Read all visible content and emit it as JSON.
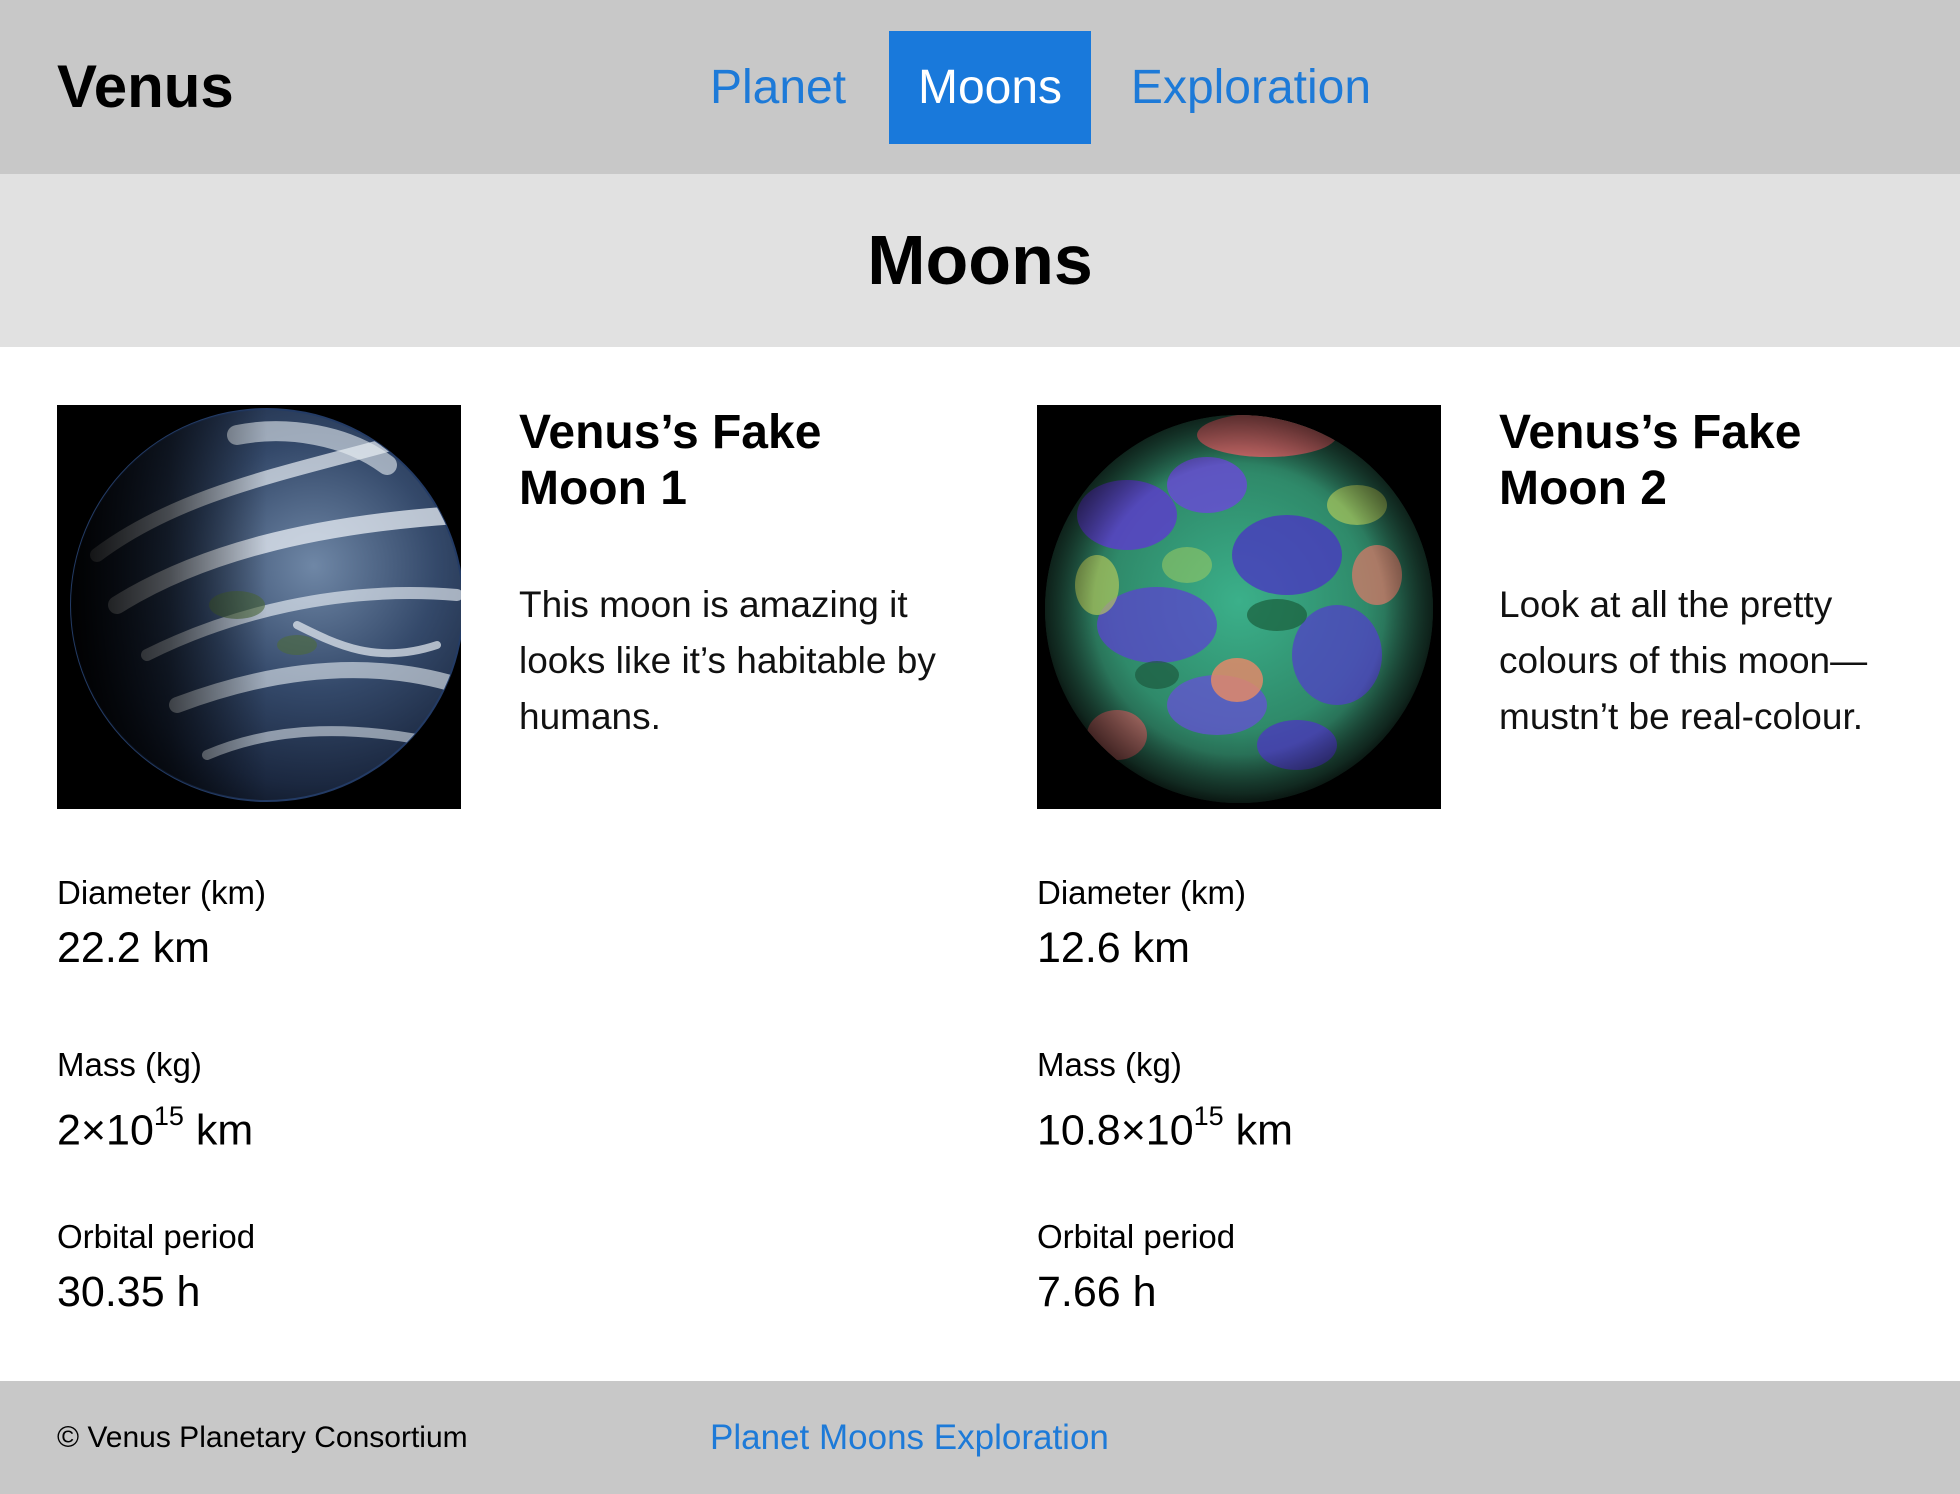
{
  "header": {
    "brand": "Venus",
    "nav": [
      {
        "label": "Planet",
        "active": false
      },
      {
        "label": "Moons",
        "active": true
      },
      {
        "label": "Exploration",
        "active": false
      }
    ]
  },
  "hero": {
    "title": "Moons"
  },
  "moons": [
    {
      "name": "Venus’s Fake Moon 1",
      "description": "This moon is amazing it looks like it’s habitable by humans.",
      "image_icon": "earth-like-planet-icon",
      "diameter_label": "Diameter (km)",
      "diameter_value": "22.2 km",
      "mass_label": "Mass (kg)",
      "mass_base": "2×10",
      "mass_exponent": "15",
      "mass_unit": " km",
      "orbital_label": "Orbital period",
      "orbital_value": "30.35 h"
    },
    {
      "name": "Venus’s Fake Moon 2",
      "description": "Look at all the pretty colours of this moon—mustn’t be real-colour.",
      "image_icon": "false-colour-planet-icon",
      "diameter_label": "Diameter (km)",
      "diameter_value": "12.6 km",
      "mass_label": "Mass (kg)",
      "mass_base": "10.8×10",
      "mass_exponent": "15",
      "mass_unit": " km",
      "orbital_label": "Orbital period",
      "orbital_value": "7.66 h"
    }
  ],
  "footer": {
    "copyright": "© Venus Planetary Consortium",
    "links": [
      "Planet",
      "Moons",
      "Exploration"
    ]
  },
  "colors": {
    "header_bg": "#c8c8c8",
    "hero_bg": "#e1e1e1",
    "link": "#1d7ad8",
    "active_nav_bg": "#1979db"
  }
}
